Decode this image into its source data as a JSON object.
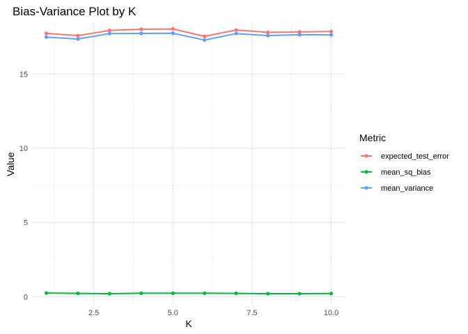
{
  "chart_data": {
    "type": "line",
    "title": "Bias-Variance Plot by K",
    "xlabel": "K",
    "ylabel": "Value",
    "x": [
      1,
      2,
      3,
      4,
      5,
      6,
      7,
      8,
      9,
      10
    ],
    "xlim": [
      0.55,
      10.45
    ],
    "ylim": [
      -0.55,
      18.5
    ],
    "xticks": [
      2.5,
      5.0,
      7.5,
      10.0
    ],
    "xtick_labels": [
      "2.5",
      "5.0",
      "7.5",
      "10.0"
    ],
    "yticks": [
      0,
      5,
      10,
      15
    ],
    "ytick_labels": [
      "0",
      "5",
      "10",
      "15"
    ],
    "grid": true,
    "legend": {
      "title": "Metric",
      "position": "right"
    },
    "series": [
      {
        "name": "expected_test_error",
        "color": "#F8766D",
        "values": [
          17.75,
          17.6,
          17.95,
          18.03,
          18.05,
          17.55,
          17.98,
          17.82,
          17.85,
          17.88
        ]
      },
      {
        "name": "mean_sq_bias",
        "color": "#00BA38",
        "values": [
          0.24,
          0.22,
          0.2,
          0.23,
          0.23,
          0.23,
          0.22,
          0.2,
          0.2,
          0.21
        ]
      },
      {
        "name": "mean_variance",
        "color": "#619CFF",
        "values": [
          17.5,
          17.37,
          17.74,
          17.75,
          17.76,
          17.3,
          17.74,
          17.6,
          17.66,
          17.65
        ]
      }
    ]
  }
}
